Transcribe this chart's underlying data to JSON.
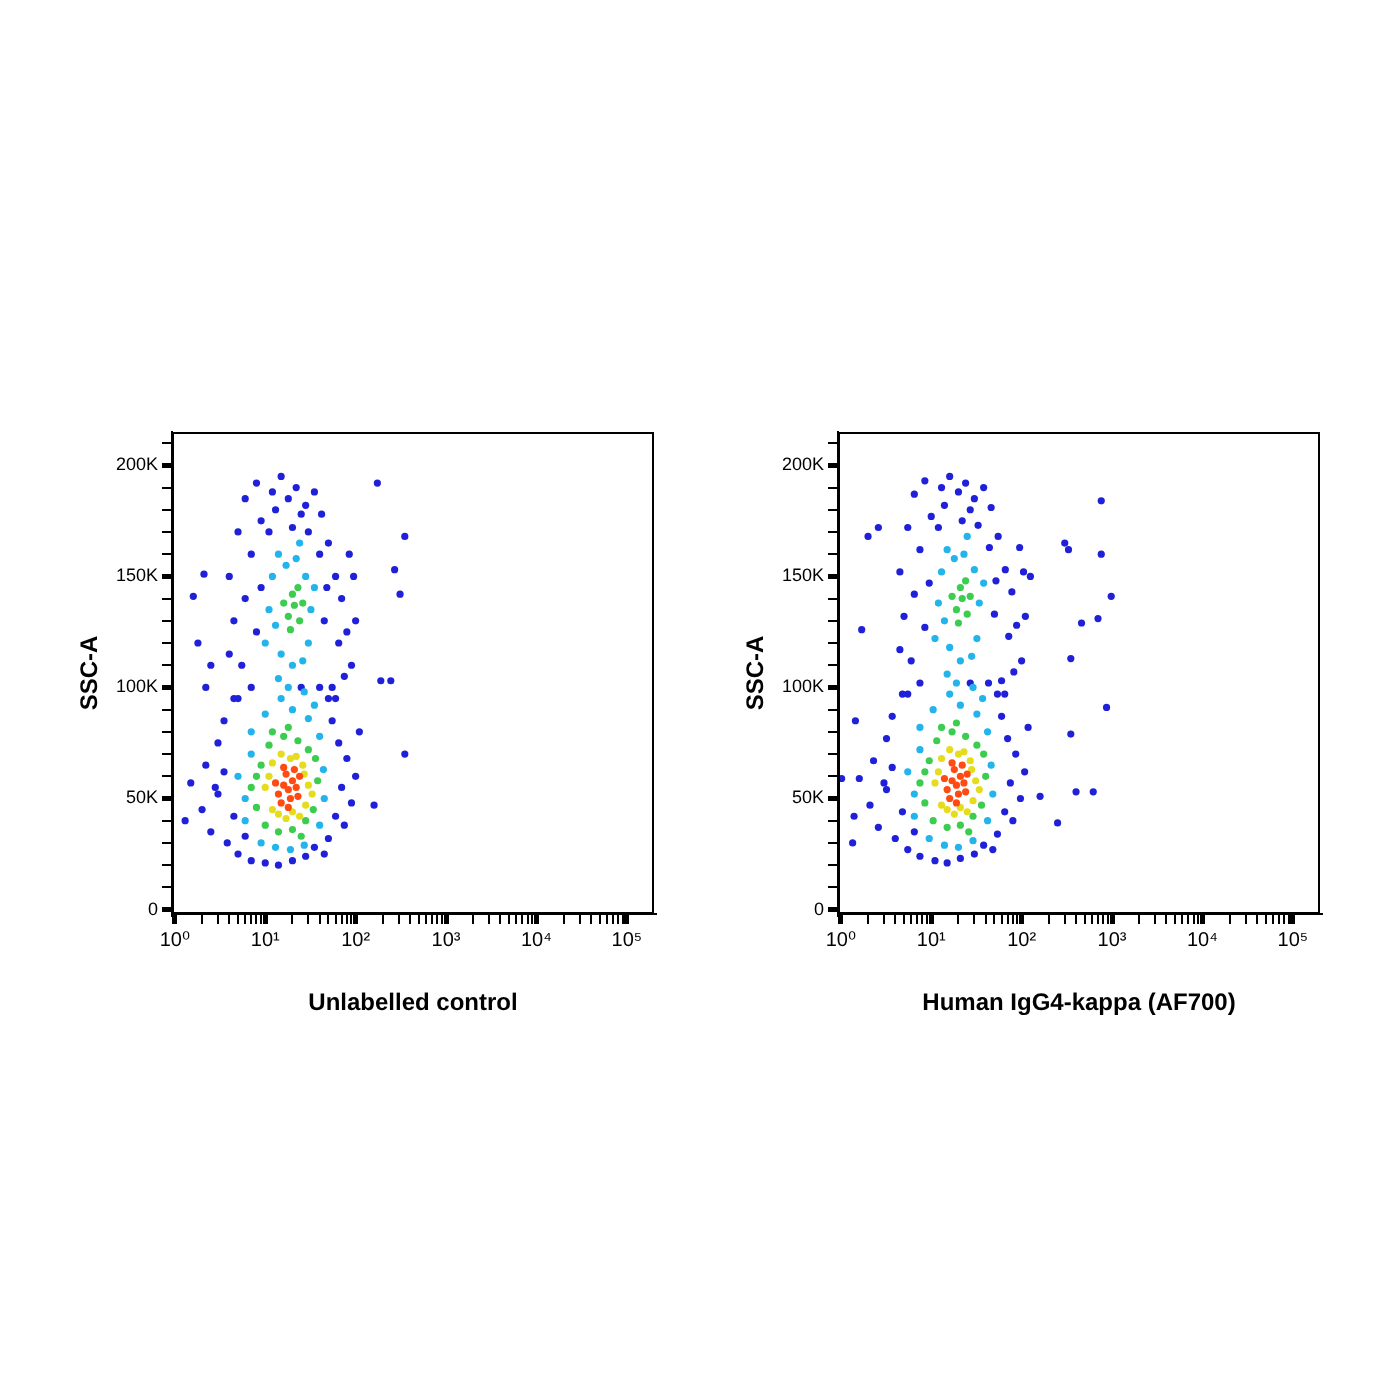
{
  "chart_data": [
    {
      "type": "scatter",
      "xlabel": "Unlabelled control",
      "ylabel": "SSC-A",
      "log": "x",
      "marker": "circle",
      "xlim": [
        0.93,
        200000
      ],
      "ylim": [
        -2000,
        215000
      ],
      "xticks": [
        {
          "value": 1,
          "label": "10⁰"
        },
        {
          "value": 2,
          "label": null
        },
        {
          "value": 3,
          "label": null
        },
        {
          "value": 4,
          "label": null
        },
        {
          "value": 5,
          "label": null
        },
        {
          "value": 6,
          "label": null
        },
        {
          "value": 7,
          "label": null
        },
        {
          "value": 8,
          "label": null
        },
        {
          "value": 9,
          "label": null
        },
        {
          "value": 10,
          "label": "10¹"
        },
        {
          "value": 20,
          "label": null
        },
        {
          "value": 30,
          "label": null
        },
        {
          "value": 40,
          "label": null
        },
        {
          "value": 50,
          "label": null
        },
        {
          "value": 60,
          "label": null
        },
        {
          "value": 70,
          "label": null
        },
        {
          "value": 80,
          "label": null
        },
        {
          "value": 90,
          "label": null
        },
        {
          "value": 100,
          "label": "10²"
        },
        {
          "value": 200,
          "label": null
        },
        {
          "value": 300,
          "label": null
        },
        {
          "value": 400,
          "label": null
        },
        {
          "value": 500,
          "label": null
        },
        {
          "value": 600,
          "label": null
        },
        {
          "value": 700,
          "label": null
        },
        {
          "value": 800,
          "label": null
        },
        {
          "value": 900,
          "label": null
        },
        {
          "value": 1000,
          "label": "10³"
        },
        {
          "value": 2000,
          "label": null
        },
        {
          "value": 3000,
          "label": null
        },
        {
          "value": 4000,
          "label": null
        },
        {
          "value": 5000,
          "label": null
        },
        {
          "value": 6000,
          "label": null
        },
        {
          "value": 7000,
          "label": null
        },
        {
          "value": 8000,
          "label": null
        },
        {
          "value": 9000,
          "label": null
        },
        {
          "value": 10000,
          "label": "10⁴"
        },
        {
          "value": 20000,
          "label": null
        },
        {
          "value": 30000,
          "label": null
        },
        {
          "value": 40000,
          "label": null
        },
        {
          "value": 50000,
          "label": null
        },
        {
          "value": 60000,
          "label": null
        },
        {
          "value": 70000,
          "label": null
        },
        {
          "value": 80000,
          "label": null
        },
        {
          "value": 90000,
          "label": null
        },
        {
          "value": 100000,
          "label": "10⁵"
        }
      ],
      "yticks": [
        0,
        {
          "value": 10000,
          "label": null
        },
        {
          "value": 20000,
          "label": null
        },
        {
          "value": 30000,
          "label": null
        },
        {
          "value": 40000,
          "label": null
        },
        {
          "value": 50000,
          "label": "50K"
        },
        {
          "value": 60000,
          "label": null
        },
        {
          "value": 70000,
          "label": null
        },
        {
          "value": 80000,
          "label": null
        },
        {
          "value": 90000,
          "label": null
        },
        {
          "value": 100000,
          "label": "100K"
        },
        {
          "value": 110000,
          "label": null
        },
        {
          "value": 120000,
          "label": null
        },
        {
          "value": 130000,
          "label": null
        },
        {
          "value": 140000,
          "label": null
        },
        {
          "value": 150000,
          "label": "150K"
        },
        {
          "value": 160000,
          "label": null
        },
        {
          "value": 170000,
          "label": null
        },
        {
          "value": 180000,
          "label": null
        },
        {
          "value": 190000,
          "label": null
        },
        {
          "value": 200000,
          "label": "200K"
        },
        {
          "value": 210000,
          "label": null
        }
      ],
      "series": [
        {
          "color": "#2020d8",
          "x": [
            4,
            4.5,
            5,
            5.5,
            6,
            7,
            8,
            9,
            12,
            15,
            18,
            22,
            28,
            35,
            42,
            50,
            60,
            70,
            80,
            90,
            65,
            55,
            45,
            40,
            48,
            6,
            7,
            8,
            9,
            11,
            13,
            20,
            30,
            25,
            4,
            5,
            60,
            75,
            100,
            95,
            85,
            1.3,
            1.5,
            2,
            2.2,
            2.5,
            3,
            3,
            3.5,
            3.8,
            4.5,
            4.5,
            5,
            7,
            10,
            14,
            20,
            28,
            35,
            50,
            60,
            70,
            80,
            65,
            55,
            50,
            75,
            90,
            100,
            110,
            40,
            25,
            3.5,
            2.8,
            6,
            45,
            174,
            350,
            270,
            310,
            190,
            245,
            350,
            160,
            1.6,
            2.1,
            1.8,
            2.5,
            2.2
          ],
          "values": [
            150000,
            130000,
            170000,
            110000,
            185000,
            160000,
            192000,
            175000,
            188000,
            195000,
            185000,
            190000,
            182000,
            188000,
            178000,
            165000,
            150000,
            140000,
            125000,
            110000,
            120000,
            100000,
            130000,
            160000,
            145000,
            140000,
            100000,
            125000,
            145000,
            170000,
            180000,
            172000,
            170000,
            178000,
            115000,
            95000,
            95000,
            105000,
            130000,
            150000,
            160000,
            40000,
            57000,
            45000,
            65000,
            35000,
            75000,
            52000,
            85000,
            30000,
            42000,
            95000,
            25000,
            22000,
            21000,
            20000,
            22000,
            24000,
            28000,
            32000,
            42000,
            55000,
            68000,
            75000,
            85000,
            95000,
            38000,
            48000,
            60000,
            80000,
            100000,
            100000,
            62000,
            55000,
            33000,
            25000,
            192000,
            168000,
            153000,
            142000,
            103000,
            103000,
            70000,
            47000,
            141000,
            151000,
            120000,
            110000,
            100000
          ]
        },
        {
          "color": "#22b4ea",
          "x": [
            10,
            12,
            14,
            17,
            22,
            28,
            32,
            30,
            26,
            20,
            15,
            11,
            13,
            35,
            24,
            18,
            14,
            27,
            6,
            6,
            7,
            9,
            13,
            19,
            27,
            40,
            45,
            44,
            40,
            30,
            20,
            10,
            7,
            5,
            35,
            15
          ],
          "values": [
            120000,
            150000,
            160000,
            155000,
            158000,
            150000,
            135000,
            120000,
            112000,
            110000,
            115000,
            135000,
            128000,
            145000,
            165000,
            100000,
            104000,
            98000,
            50000,
            40000,
            70000,
            30000,
            28000,
            27000,
            29000,
            38000,
            50000,
            63000,
            78000,
            86000,
            90000,
            88000,
            80000,
            60000,
            92000,
            95000
          ]
        },
        {
          "color": "#3ccc50",
          "x": [
            7,
            8,
            9,
            10,
            11,
            14,
            16,
            20,
            23,
            28,
            34,
            38,
            36,
            30,
            18,
            12,
            25,
            8,
            18,
            21,
            24,
            20,
            16,
            23,
            26,
            19
          ],
          "values": [
            55000,
            46000,
            65000,
            38000,
            74000,
            35000,
            78000,
            36000,
            76000,
            40000,
            45000,
            58000,
            68000,
            72000,
            82000,
            80000,
            33000,
            60000,
            132000,
            137000,
            130000,
            142000,
            138000,
            145000,
            138000,
            126000
          ]
        },
        {
          "color": "#e6dc1e",
          "x": [
            10,
            12,
            12,
            15,
            19,
            26,
            30,
            28,
            24,
            17,
            11,
            33,
            14,
            22,
            20,
            27
          ],
          "values": [
            55000,
            45000,
            66000,
            70000,
            68000,
            65000,
            56000,
            47000,
            42000,
            41000,
            60000,
            52000,
            43000,
            69000,
            44000,
            61000
          ]
        },
        {
          "color": "#ff4a12",
          "x": [
            14,
            16,
            18,
            20,
            17,
            22,
            15,
            19,
            24,
            21,
            13,
            18,
            23,
            16
          ],
          "values": [
            52000,
            56000,
            54000,
            58000,
            61000,
            55000,
            48000,
            50000,
            60000,
            63000,
            57000,
            46000,
            51000,
            64000
          ]
        }
      ]
    },
    {
      "type": "scatter",
      "xlabel": "Human IgG4-kappa (AF700)",
      "ylabel": "SSC-A",
      "log": "x",
      "marker": "circle",
      "xlim": [
        0.93,
        200000
      ],
      "ylim": [
        -2000,
        215000
      ],
      "xticks": [
        {
          "value": 1,
          "label": "10⁰"
        },
        {
          "value": 2,
          "label": null
        },
        {
          "value": 3,
          "label": null
        },
        {
          "value": 4,
          "label": null
        },
        {
          "value": 5,
          "label": null
        },
        {
          "value": 6,
          "label": null
        },
        {
          "value": 7,
          "label": null
        },
        {
          "value": 8,
          "label": null
        },
        {
          "value": 9,
          "label": null
        },
        {
          "value": 10,
          "label": "10¹"
        },
        {
          "value": 20,
          "label": null
        },
        {
          "value": 30,
          "label": null
        },
        {
          "value": 40,
          "label": null
        },
        {
          "value": 50,
          "label": null
        },
        {
          "value": 60,
          "label": null
        },
        {
          "value": 70,
          "label": null
        },
        {
          "value": 80,
          "label": null
        },
        {
          "value": 90,
          "label": null
        },
        {
          "value": 100,
          "label": "10²"
        },
        {
          "value": 200,
          "label": null
        },
        {
          "value": 300,
          "label": null
        },
        {
          "value": 400,
          "label": null
        },
        {
          "value": 500,
          "label": null
        },
        {
          "value": 600,
          "label": null
        },
        {
          "value": 700,
          "label": null
        },
        {
          "value": 800,
          "label": null
        },
        {
          "value": 900,
          "label": null
        },
        {
          "value": 1000,
          "label": "10³"
        },
        {
          "value": 2000,
          "label": null
        },
        {
          "value": 3000,
          "label": null
        },
        {
          "value": 4000,
          "label": null
        },
        {
          "value": 5000,
          "label": null
        },
        {
          "value": 6000,
          "label": null
        },
        {
          "value": 7000,
          "label": null
        },
        {
          "value": 8000,
          "label": null
        },
        {
          "value": 9000,
          "label": null
        },
        {
          "value": 10000,
          "label": "10⁴"
        },
        {
          "value": 20000,
          "label": null
        },
        {
          "value": 30000,
          "label": null
        },
        {
          "value": 40000,
          "label": null
        },
        {
          "value": 50000,
          "label": null
        },
        {
          "value": 60000,
          "label": null
        },
        {
          "value": 70000,
          "label": null
        },
        {
          "value": 80000,
          "label": null
        },
        {
          "value": 90000,
          "label": null
        },
        {
          "value": 100000,
          "label": "10⁵"
        }
      ],
      "yticks": [
        0,
        {
          "value": 10000,
          "label": null
        },
        {
          "value": 20000,
          "label": null
        },
        {
          "value": 30000,
          "label": null
        },
        {
          "value": 40000,
          "label": null
        },
        {
          "value": 50000,
          "label": "50K"
        },
        {
          "value": 60000,
          "label": null
        },
        {
          "value": 70000,
          "label": null
        },
        {
          "value": 80000,
          "label": null
        },
        {
          "value": 90000,
          "label": null
        },
        {
          "value": 100000,
          "label": "100K"
        },
        {
          "value": 110000,
          "label": null
        },
        {
          "value": 120000,
          "label": null
        },
        {
          "value": 130000,
          "label": null
        },
        {
          "value": 140000,
          "label": null
        },
        {
          "value": 150000,
          "label": "150K"
        },
        {
          "value": 160000,
          "label": null
        },
        {
          "value": 170000,
          "label": null
        },
        {
          "value": 180000,
          "label": null
        },
        {
          "value": 190000,
          "label": null
        },
        {
          "value": 200000,
          "label": "200K"
        },
        {
          "value": 210000,
          "label": null
        }
      ],
      "series": [
        {
          "color": "#2020d8",
          "x": [
            4.5,
            5,
            5.5,
            6,
            6.5,
            7.5,
            8.5,
            10,
            13,
            16,
            20,
            24,
            30,
            38,
            46,
            55,
            66,
            78,
            88,
            100,
            72,
            60,
            50,
            44,
            52,
            6.5,
            7.5,
            8.5,
            9.5,
            12,
            14,
            22,
            33,
            27,
            4.5,
            5.5,
            65,
            82,
            110,
            105,
            95,
            125,
            1.4,
            1.6,
            2.1,
            2.3,
            2.6,
            3.2,
            3.2,
            3.7,
            4,
            4.8,
            4.8,
            5.5,
            7.5,
            11,
            15,
            21,
            30,
            38,
            54,
            65,
            75,
            86,
            70,
            60,
            54,
            80,
            97,
            108,
            118,
            43,
            27,
            3.7,
            3,
            6.5,
            48,
            760,
            760,
            300,
            330,
            980,
            700,
            460,
            350,
            870,
            350,
            400,
            620,
            250,
            160,
            1.02,
            1.35,
            1.45,
            1.7,
            2,
            2.6
          ],
          "values": [
            152000,
            132000,
            172000,
            112000,
            187000,
            162000,
            193000,
            177000,
            190000,
            195000,
            188000,
            192000,
            185000,
            190000,
            181000,
            168000,
            153000,
            143000,
            128000,
            112000,
            123000,
            103000,
            133000,
            163000,
            148000,
            142000,
            102000,
            127000,
            147000,
            172000,
            182000,
            175000,
            173000,
            180000,
            117000,
            97000,
            97000,
            107000,
            132000,
            152000,
            163000,
            150000,
            42000,
            59000,
            47000,
            67000,
            37000,
            77000,
            54000,
            87000,
            32000,
            44000,
            97000,
            27000,
            24000,
            22000,
            21000,
            23000,
            25000,
            29000,
            34000,
            44000,
            57000,
            70000,
            77000,
            87000,
            97000,
            40000,
            50000,
            62000,
            82000,
            102000,
            102000,
            64000,
            57000,
            35000,
            27000,
            184000,
            160000,
            165000,
            162000,
            141000,
            131000,
            129000,
            113000,
            91000,
            79000,
            53000,
            53000,
            39000,
            51000,
            59000,
            30000,
            85000,
            126000,
            168000,
            172000
          ]
        },
        {
          "color": "#22b4ea",
          "x": [
            11,
            13,
            15,
            18,
            23,
            30,
            34,
            32,
            28,
            21,
            16,
            12,
            14,
            38,
            25,
            19,
            15,
            29,
            6.5,
            6.5,
            7.5,
            9.5,
            14,
            20,
            29,
            42,
            48,
            46,
            42,
            32,
            21,
            10.5,
            7.5,
            5.5,
            37,
            16
          ],
          "values": [
            122000,
            152000,
            162000,
            158000,
            160000,
            153000,
            138000,
            122000,
            114000,
            112000,
            118000,
            138000,
            130000,
            147000,
            168000,
            102000,
            106000,
            100000,
            52000,
            42000,
            72000,
            32000,
            29000,
            28000,
            31000,
            40000,
            52000,
            65000,
            80000,
            88000,
            92000,
            90000,
            82000,
            62000,
            95000,
            97000
          ]
        },
        {
          "color": "#3ccc50",
          "x": [
            7.5,
            8.5,
            9.5,
            10.5,
            11.5,
            15,
            17,
            21,
            24,
            29,
            36,
            40,
            38,
            32,
            19,
            13,
            26,
            8.5,
            19,
            22,
            25,
            21,
            17,
            24,
            27,
            20
          ],
          "values": [
            57000,
            48000,
            67000,
            40000,
            76000,
            37000,
            80000,
            38000,
            78000,
            42000,
            47000,
            60000,
            70000,
            74000,
            84000,
            82000,
            35000,
            62000,
            135000,
            140000,
            133000,
            145000,
            141000,
            148000,
            141000,
            129000
          ]
        },
        {
          "color": "#e6dc1e",
          "x": [
            11,
            13,
            13,
            16,
            20,
            27,
            31,
            29,
            25,
            18,
            12,
            34,
            15,
            23,
            21,
            28
          ],
          "values": [
            57000,
            47000,
            68000,
            72000,
            70000,
            67000,
            58000,
            49000,
            44000,
            43000,
            62000,
            54000,
            45000,
            71000,
            46000,
            63000
          ]
        },
        {
          "color": "#ff4a12",
          "x": [
            15,
            17,
            19,
            21,
            18,
            23,
            16,
            20,
            25,
            22,
            14,
            19,
            24,
            17
          ],
          "values": [
            54000,
            58000,
            56000,
            60000,
            63000,
            57000,
            50000,
            52000,
            61000,
            65000,
            59000,
            48000,
            53000,
            66000
          ]
        }
      ]
    }
  ]
}
